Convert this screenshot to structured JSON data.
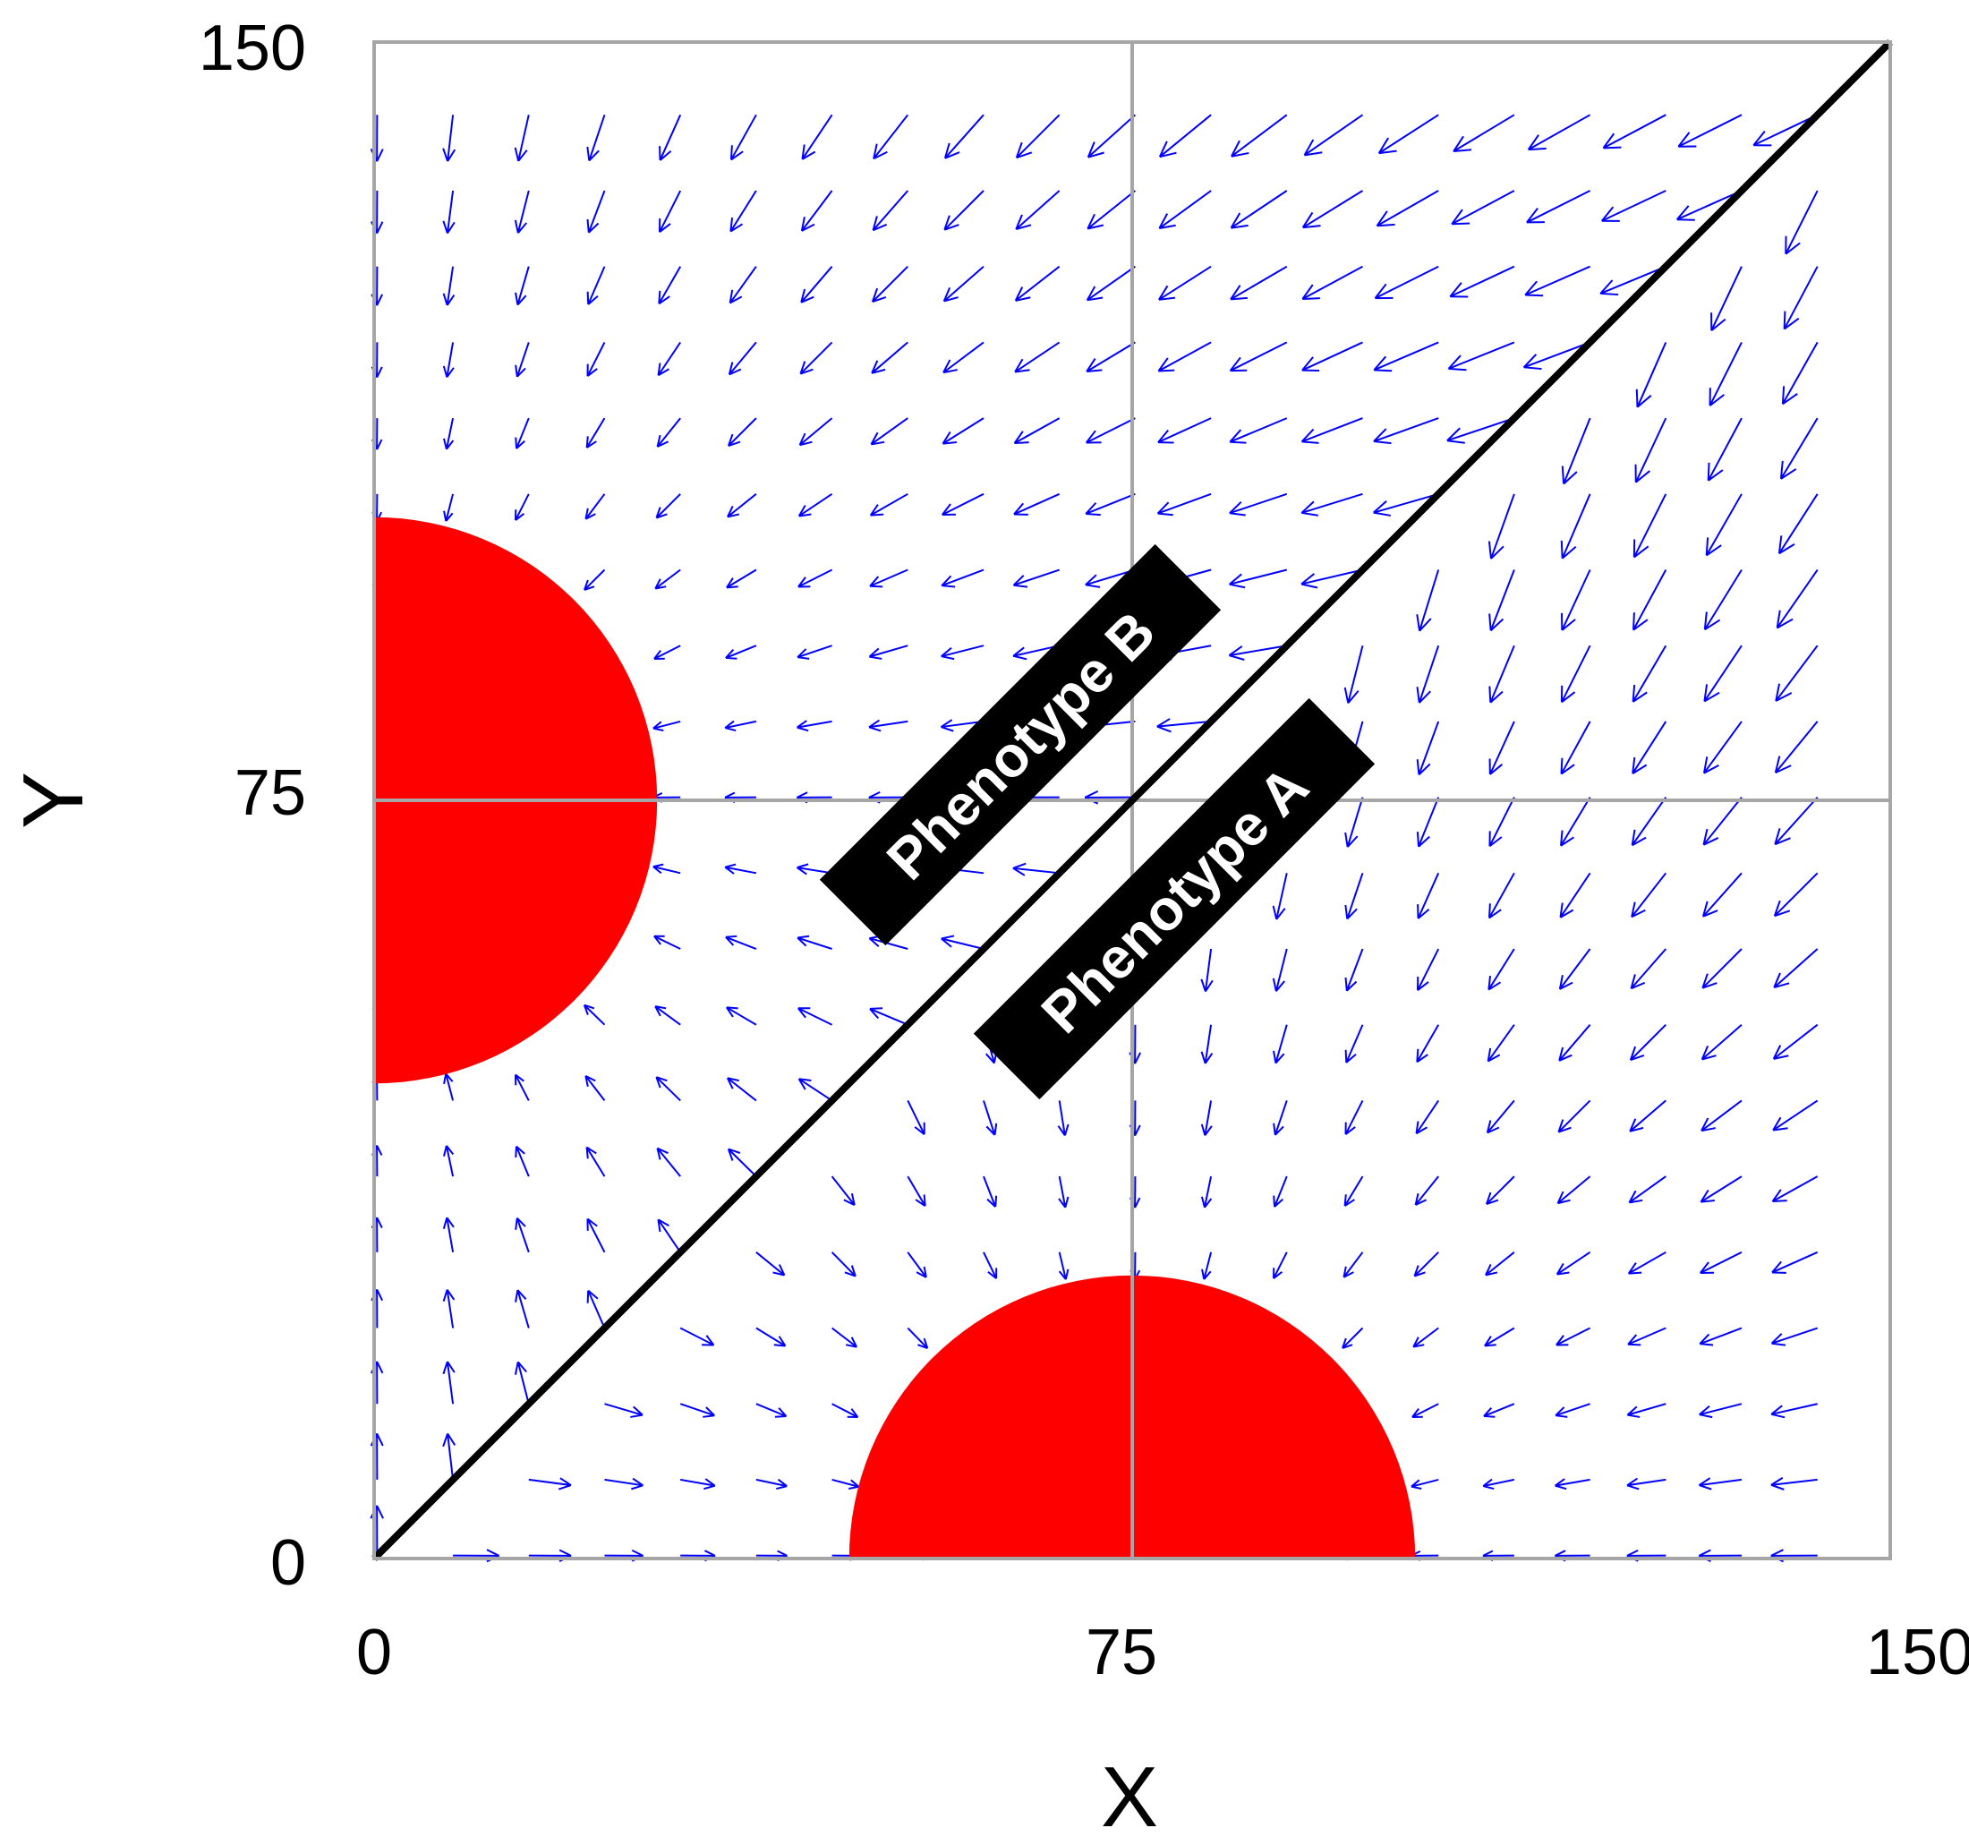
{
  "chart_data": {
    "type": "vector_field",
    "xlabel": "X",
    "ylabel": "Y",
    "xlim": [
      0,
      150
    ],
    "ylim": [
      0,
      150
    ],
    "x_ticks": [
      "0",
      "75",
      "150"
    ],
    "y_ticks": [
      "0",
      "75",
      "150"
    ],
    "grid": true,
    "separatrix": {
      "from": [
        0,
        0
      ],
      "to": [
        150,
        150
      ]
    },
    "attractors": [
      {
        "center": [
          0,
          75
        ],
        "radius": 28
      },
      {
        "center": [
          75,
          0
        ],
        "radius": 28
      }
    ],
    "region_labels": [
      "Phenotype B",
      "Phenotype A"
    ],
    "colors": {
      "arrows": "#0000ff",
      "attractor": "#ff0000",
      "separatrix": "#000000",
      "grid": "#a6a6a6"
    }
  }
}
